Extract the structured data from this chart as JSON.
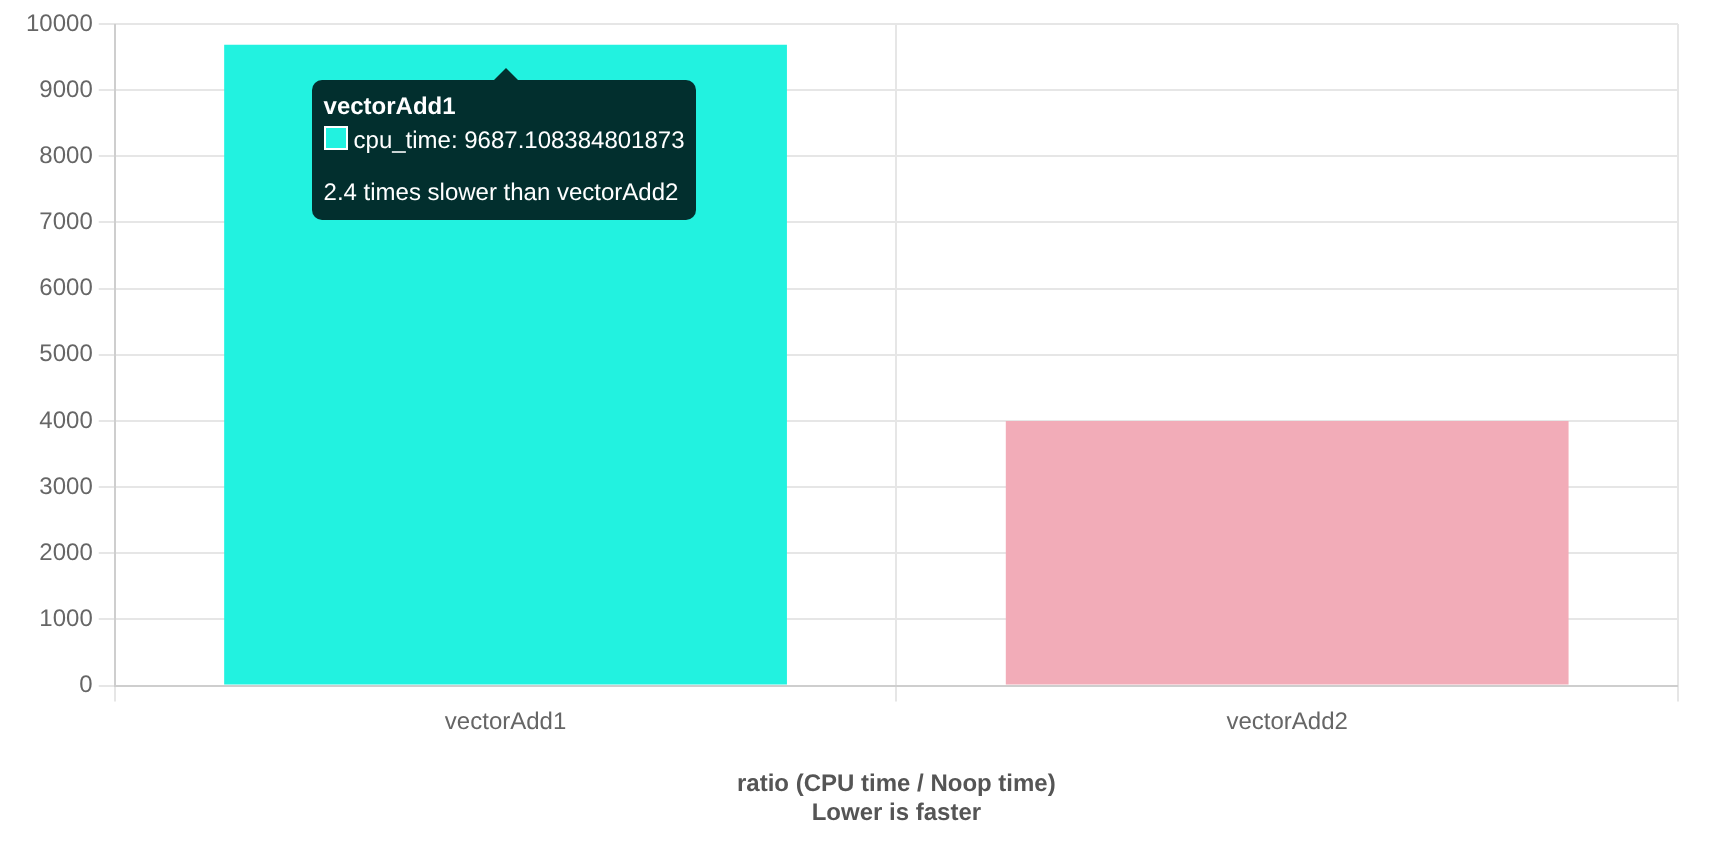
{
  "chart_data": {
    "type": "bar",
    "xlabel": "ratio (CPU time / Noop time)\nLower is faster",
    "categories": [
      "vectorAdd1",
      "vectorAdd2"
    ],
    "series": [
      {
        "values": [
          9687.108384801873,
          4000
        ],
        "colors": [
          "#22f2e0",
          "#f2acb8"
        ]
      }
    ],
    "ylim": [
      0,
      10000
    ],
    "yticks": [
      0,
      1000,
      2000,
      3000,
      4000,
      5000,
      6000,
      7000,
      8000,
      9000,
      10000
    ],
    "grid": true,
    "legend": false,
    "annotations": [
      "vectorAdd1",
      "cpu_time: 9687.108384801873",
      "2.4 times slower than vectorAdd2"
    ]
  }
}
